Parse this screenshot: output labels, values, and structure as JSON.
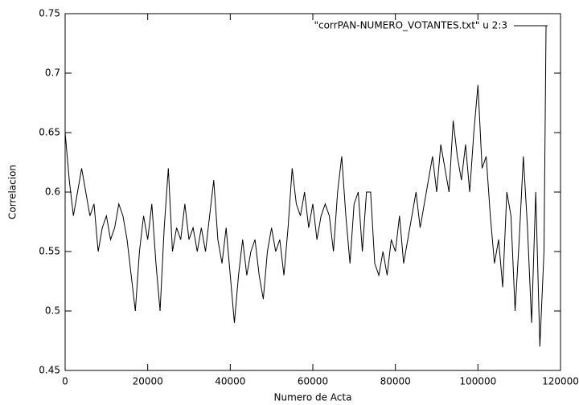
{
  "chart_data": {
    "type": "line",
    "xlabel": "Numero de Acta",
    "ylabel": "Correlacion",
    "xlim": [
      0,
      120000
    ],
    "ylim": [
      0.45,
      0.75
    ],
    "xticks": [
      0,
      20000,
      40000,
      60000,
      80000,
      100000,
      120000
    ],
    "yticks": [
      0.45,
      {
        "value": 0.5,
        "label": "0.5"
      },
      0.55,
      {
        "value": 0.6,
        "label": "0.6"
      },
      0.65,
      {
        "value": 0.7,
        "label": "0.7"
      },
      0.75
    ],
    "legend": "top-right",
    "x": [
      0,
      1000,
      2000,
      3000,
      4000,
      5000,
      6000,
      7000,
      8000,
      9000,
      10000,
      11000,
      12000,
      13000,
      14000,
      15000,
      16000,
      17000,
      18000,
      19000,
      20000,
      21000,
      22000,
      23000,
      24000,
      25000,
      26000,
      27000,
      28000,
      29000,
      30000,
      31000,
      32000,
      33000,
      34000,
      35000,
      36000,
      37000,
      38000,
      39000,
      40000,
      41000,
      42000,
      43000,
      44000,
      45000,
      46000,
      47000,
      48000,
      49000,
      50000,
      51000,
      52000,
      53000,
      54000,
      55000,
      56000,
      57000,
      58000,
      59000,
      60000,
      61000,
      62000,
      63000,
      64000,
      65000,
      66000,
      67000,
      68000,
      69000,
      70000,
      71000,
      72000,
      73000,
      74000,
      75000,
      76000,
      77000,
      78000,
      79000,
      80000,
      81000,
      82000,
      83000,
      84000,
      85000,
      86000,
      87000,
      88000,
      89000,
      90000,
      91000,
      92000,
      93000,
      94000,
      95000,
      96000,
      97000,
      98000,
      99000,
      100000,
      101000,
      102000,
      103000,
      104000,
      105000,
      106000,
      107000,
      108000,
      109000,
      110000,
      111000,
      112000,
      113000,
      114000,
      115000,
      116000,
      116500
    ],
    "series": [
      {
        "name": "\"corrPAN-NUMERO_VOTANTES.txt\" u 2:3",
        "color": "#000000",
        "values": [
          0.65,
          0.61,
          0.58,
          0.6,
          0.62,
          0.6,
          0.58,
          0.59,
          0.55,
          0.57,
          0.58,
          0.56,
          0.57,
          0.59,
          0.58,
          0.56,
          0.53,
          0.5,
          0.55,
          0.58,
          0.56,
          0.59,
          0.54,
          0.5,
          0.57,
          0.62,
          0.55,
          0.57,
          0.56,
          0.59,
          0.56,
          0.57,
          0.55,
          0.57,
          0.55,
          0.58,
          0.61,
          0.56,
          0.54,
          0.57,
          0.53,
          0.49,
          0.53,
          0.56,
          0.53,
          0.55,
          0.56,
          0.53,
          0.51,
          0.55,
          0.57,
          0.55,
          0.56,
          0.53,
          0.57,
          0.62,
          0.59,
          0.58,
          0.6,
          0.57,
          0.59,
          0.56,
          0.58,
          0.59,
          0.58,
          0.55,
          0.6,
          0.63,
          0.58,
          0.54,
          0.59,
          0.6,
          0.55,
          0.6,
          0.6,
          0.54,
          0.53,
          0.55,
          0.53,
          0.56,
          0.55,
          0.58,
          0.54,
          0.56,
          0.58,
          0.6,
          0.57,
          0.59,
          0.61,
          0.63,
          0.6,
          0.64,
          0.62,
          0.6,
          0.66,
          0.63,
          0.61,
          0.64,
          0.6,
          0.65,
          0.69,
          0.62,
          0.63,
          0.58,
          0.54,
          0.56,
          0.52,
          0.6,
          0.58,
          0.5,
          0.56,
          0.63,
          0.57,
          0.49,
          0.6,
          0.47,
          0.55,
          0.74
        ]
      }
    ]
  }
}
